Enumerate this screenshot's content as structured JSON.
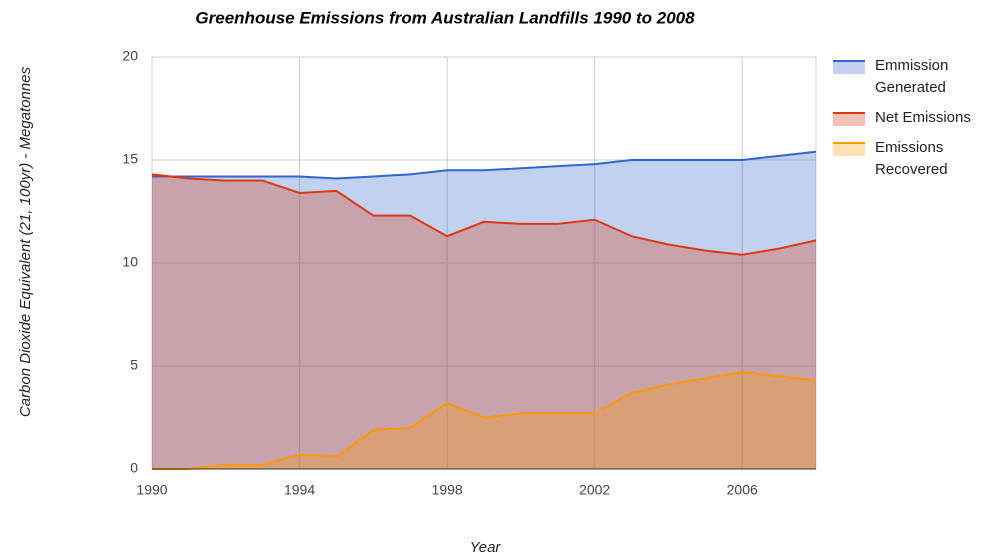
{
  "chart_data": {
    "type": "area",
    "title": "Greenhouse Emissions from Australian Landfills 1990 to 2008",
    "x_label": "Year",
    "y_label": "Carbon Dioxide Equivalent (21, 100yr) - Megatonnes",
    "x": [
      1990,
      1991,
      1992,
      1993,
      1994,
      1995,
      1996,
      1997,
      1998,
      1999,
      2000,
      2001,
      2002,
      2003,
      2004,
      2005,
      2006,
      2007,
      2008
    ],
    "series": [
      {
        "name": "Emmission Generated",
        "color": "#3366cc",
        "values": [
          14.2,
          14.2,
          14.2,
          14.2,
          14.2,
          14.1,
          14.2,
          14.3,
          14.5,
          14.5,
          14.6,
          14.7,
          14.8,
          15.0,
          15.0,
          15.0,
          15.0,
          15.2,
          15.4
        ]
      },
      {
        "name": "Net Emissions",
        "color": "#dc3912",
        "values": [
          14.3,
          14.1,
          14.0,
          14.0,
          13.4,
          13.5,
          12.3,
          12.3,
          11.3,
          12.0,
          11.9,
          11.9,
          12.1,
          11.3,
          10.9,
          10.6,
          10.4,
          10.7,
          11.1
        ]
      },
      {
        "name": "Emissions Recovered",
        "color": "#ff9900",
        "values": [
          0.0,
          0.0,
          0.2,
          0.2,
          0.7,
          0.6,
          1.9,
          2.0,
          3.2,
          2.5,
          2.7,
          2.7,
          2.7,
          3.7,
          4.1,
          4.4,
          4.7,
          4.5,
          4.3
        ]
      }
    ],
    "xlim": [
      1990,
      2008
    ],
    "xticks": [
      1990,
      1994,
      1998,
      2002,
      2006
    ],
    "ylim": [
      0,
      20
    ],
    "yticks": [
      0,
      5,
      10,
      15,
      20
    ],
    "grid": true,
    "legend": "right"
  }
}
